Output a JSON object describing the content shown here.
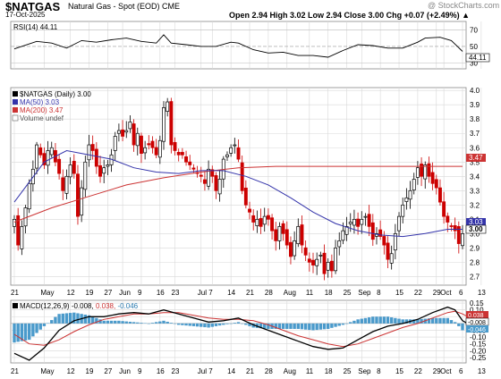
{
  "header": {
    "symbol": "$NATGAS",
    "name": "Natural Gas - Spot (EOD)  CME",
    "date": "17-Oct-2025",
    "ohlc": "Open 2.94  High 3.02  Low 2.94  Close 3.00  Chg +0.07 (+2.49%) ▲",
    "watermark": "@ StockCharts.com"
  },
  "colors": {
    "up": "#000000",
    "down": "#cc0000",
    "ma50": "#3333aa",
    "ma200": "#cc3333",
    "rsi": "#000000",
    "macd": "#000000",
    "signal": "#cc3333",
    "hist": "#4a9acb",
    "grid": "#d8d8d8"
  },
  "x_labels": [
    {
      "i": 0,
      "t": "21"
    },
    {
      "i": 8,
      "t": "May"
    },
    {
      "i": 15,
      "t": "12"
    },
    {
      "i": 20,
      "t": "19"
    },
    {
      "i": 25,
      "t": "27"
    },
    {
      "i": 29,
      "t": "Jun"
    },
    {
      "i": 34,
      "t": "9"
    },
    {
      "i": 39,
      "t": "16"
    },
    {
      "i": 43,
      "t": "23"
    },
    {
      "i": 50,
      "t": "Jul"
    },
    {
      "i": 53,
      "t": "7"
    },
    {
      "i": 58,
      "t": "14"
    },
    {
      "i": 63,
      "t": "21"
    },
    {
      "i": 68,
      "t": "28"
    },
    {
      "i": 73,
      "t": "Aug"
    },
    {
      "i": 79,
      "t": "11"
    },
    {
      "i": 84,
      "t": "18"
    },
    {
      "i": 89,
      "t": "25"
    },
    {
      "i": 93,
      "t": "Sep"
    },
    {
      "i": 98,
      "t": "8"
    },
    {
      "i": 103,
      "t": "15"
    },
    {
      "i": 108,
      "t": "22"
    },
    {
      "i": 113,
      "t": "29"
    },
    {
      "i": 115,
      "t": "Oct"
    },
    {
      "i": 120,
      "t": "6"
    },
    {
      "i": 125,
      "t": "13"
    }
  ],
  "rsi_panel": {
    "legend": "RSI(14) 44.11",
    "ticks": [
      70,
      50,
      30
    ],
    "value_tag": "44.11",
    "ylim": [
      23,
      80
    ]
  },
  "price_panel": {
    "legend_title": "$NATGAS (Daily) 3.00",
    "legend_ma50": "MA(50) 3.03",
    "legend_ma200": "MA(200) 3.47",
    "legend_volume": "Volume undef",
    "ticks": [
      "4.0",
      "3.9",
      "3.8",
      "3.7",
      "3.6",
      "3.5",
      "3.4",
      "3.3",
      "3.2",
      "3.1",
      "3.0",
      "2.9",
      "2.8",
      "2.7"
    ],
    "ylim": [
      2.64,
      4.02
    ],
    "tag_ma200": "3.47",
    "tag_ma50": "3.03",
    "tag_close": "3.00"
  },
  "macd_panel": {
    "legend_name": "MACD(12,26,9)",
    "legend_macd": "-0.008,",
    "legend_signal": "0.038,",
    "legend_hist": "-0.046",
    "ticks": [
      "0.15",
      "0.10",
      "0.05",
      "0.00",
      "-0.05",
      "-0.10",
      "-0.15",
      "-0.20",
      "-0.25"
    ],
    "ylim": [
      -0.29,
      0.17
    ],
    "tag_signal": "0.038",
    "tag_macd": "-0.008",
    "tag_hist": "-0.046"
  },
  "chart_data": {
    "type": "candlestick",
    "title": "$NATGAS (Daily) 3.00",
    "ylabel": "",
    "xlabel": "",
    "closes": [
      3.1,
      2.92,
      3.05,
      3.18,
      3.35,
      3.45,
      3.62,
      3.55,
      3.48,
      3.58,
      3.6,
      3.5,
      3.42,
      3.3,
      3.4,
      3.48,
      3.42,
      3.12,
      3.32,
      3.5,
      3.62,
      3.58,
      3.47,
      3.4,
      3.46,
      3.48,
      3.55,
      3.68,
      3.72,
      3.68,
      3.72,
      3.78,
      3.62,
      3.7,
      3.56,
      3.6,
      3.62,
      3.6,
      3.55,
      3.65,
      3.88,
      3.92,
      3.62,
      3.58,
      3.55,
      3.55,
      3.5,
      3.48,
      3.45,
      3.42,
      3.4,
      3.35,
      3.45,
      3.4,
      3.3,
      3.38,
      3.52,
      3.55,
      3.6,
      3.62,
      3.52,
      3.3,
      3.2,
      3.15,
      3.08,
      3.1,
      3.05,
      3.12,
      3.1,
      3.02,
      2.95,
      3.05,
      3.0,
      2.92,
      2.84,
      2.95,
      3.05,
      2.92,
      2.85,
      2.8,
      2.78,
      2.82,
      2.85,
      2.72,
      2.8,
      2.74,
      2.9,
      2.95,
      3.02,
      3.05,
      3.08,
      3.1,
      3.05,
      3.1,
      3.12,
      3.05,
      2.96,
      3.0,
      2.98,
      2.92,
      2.82,
      2.86,
      3.0,
      3.12,
      3.2,
      3.25,
      3.3,
      3.38,
      3.46,
      3.4,
      3.48,
      3.4,
      3.35,
      3.32,
      3.22,
      3.12,
      3.08,
      3.05,
      3.02,
      2.93,
      3.0
    ],
    "ma50_points": [
      [
        0,
        3.22
      ],
      [
        8,
        3.5
      ],
      [
        14,
        3.58
      ],
      [
        20,
        3.55
      ],
      [
        26,
        3.52
      ],
      [
        32,
        3.46
      ],
      [
        38,
        3.43
      ],
      [
        44,
        3.42
      ],
      [
        50,
        3.44
      ],
      [
        56,
        3.44
      ],
      [
        62,
        3.4
      ],
      [
        68,
        3.34
      ],
      [
        74,
        3.25
      ],
      [
        80,
        3.15
      ],
      [
        86,
        3.07
      ],
      [
        92,
        3.02
      ],
      [
        98,
        2.99
      ],
      [
        104,
        2.98
      ],
      [
        110,
        3.0
      ],
      [
        116,
        3.03
      ],
      [
        120,
        3.03
      ]
    ],
    "ma200_points": [
      [
        0,
        3.08
      ],
      [
        10,
        3.18
      ],
      [
        20,
        3.26
      ],
      [
        30,
        3.34
      ],
      [
        40,
        3.39
      ],
      [
        50,
        3.43
      ],
      [
        60,
        3.46
      ],
      [
        70,
        3.47
      ],
      [
        80,
        3.47
      ],
      [
        90,
        3.47
      ],
      [
        100,
        3.47
      ],
      [
        110,
        3.47
      ],
      [
        120,
        3.47
      ]
    ],
    "rsi_points": [
      [
        0,
        47
      ],
      [
        6,
        56
      ],
      [
        10,
        54
      ],
      [
        14,
        48
      ],
      [
        18,
        57
      ],
      [
        22,
        55
      ],
      [
        26,
        58
      ],
      [
        30,
        60
      ],
      [
        34,
        56
      ],
      [
        38,
        54
      ],
      [
        40,
        64
      ],
      [
        42,
        54
      ],
      [
        46,
        52
      ],
      [
        50,
        50
      ],
      [
        54,
        50
      ],
      [
        58,
        55
      ],
      [
        60,
        54
      ],
      [
        64,
        46
      ],
      [
        68,
        42
      ],
      [
        72,
        43
      ],
      [
        76,
        39
      ],
      [
        80,
        39
      ],
      [
        84,
        37
      ],
      [
        88,
        45
      ],
      [
        92,
        52
      ],
      [
        96,
        51
      ],
      [
        100,
        48
      ],
      [
        104,
        48
      ],
      [
        108,
        55
      ],
      [
        110,
        60
      ],
      [
        114,
        61
      ],
      [
        117,
        57
      ],
      [
        120,
        44
      ]
    ],
    "macd_points": [
      [
        0,
        -0.22
      ],
      [
        4,
        -0.27
      ],
      [
        8,
        -0.18
      ],
      [
        12,
        -0.05
      ],
      [
        16,
        0.02
      ],
      [
        20,
        0.05
      ],
      [
        24,
        0.05
      ],
      [
        28,
        0.07
      ],
      [
        32,
        0.08
      ],
      [
        36,
        0.07
      ],
      [
        40,
        0.1
      ],
      [
        44,
        0.07
      ],
      [
        48,
        0.04
      ],
      [
        52,
        0.01
      ],
      [
        56,
        0.02
      ],
      [
        60,
        0.04
      ],
      [
        64,
        -0.01
      ],
      [
        68,
        -0.05
      ],
      [
        72,
        -0.09
      ],
      [
        76,
        -0.13
      ],
      [
        80,
        -0.17
      ],
      [
        84,
        -0.19
      ],
      [
        88,
        -0.18
      ],
      [
        92,
        -0.12
      ],
      [
        96,
        -0.06
      ],
      [
        100,
        -0.02
      ],
      [
        104,
        0.0
      ],
      [
        108,
        0.03
      ],
      [
        112,
        0.08
      ],
      [
        116,
        0.12
      ],
      [
        118,
        0.1
      ],
      [
        120,
        0.02
      ],
      [
        122,
        -0.01
      ]
    ],
    "signal_points": [
      [
        0,
        -0.08
      ],
      [
        4,
        -0.15
      ],
      [
        8,
        -0.16
      ],
      [
        12,
        -0.12
      ],
      [
        16,
        -0.06
      ],
      [
        20,
        -0.01
      ],
      [
        24,
        0.03
      ],
      [
        28,
        0.05
      ],
      [
        32,
        0.07
      ],
      [
        36,
        0.07
      ],
      [
        40,
        0.08
      ],
      [
        44,
        0.08
      ],
      [
        48,
        0.06
      ],
      [
        52,
        0.04
      ],
      [
        56,
        0.03
      ],
      [
        60,
        0.03
      ],
      [
        64,
        0.02
      ],
      [
        68,
        -0.01
      ],
      [
        72,
        -0.05
      ],
      [
        76,
        -0.09
      ],
      [
        80,
        -0.12
      ],
      [
        84,
        -0.15
      ],
      [
        88,
        -0.17
      ],
      [
        92,
        -0.15
      ],
      [
        96,
        -0.11
      ],
      [
        100,
        -0.07
      ],
      [
        104,
        -0.03
      ],
      [
        108,
        0.0
      ],
      [
        112,
        0.04
      ],
      [
        116,
        0.08
      ],
      [
        118,
        0.09
      ],
      [
        120,
        0.07
      ],
      [
        122,
        0.04
      ]
    ]
  }
}
